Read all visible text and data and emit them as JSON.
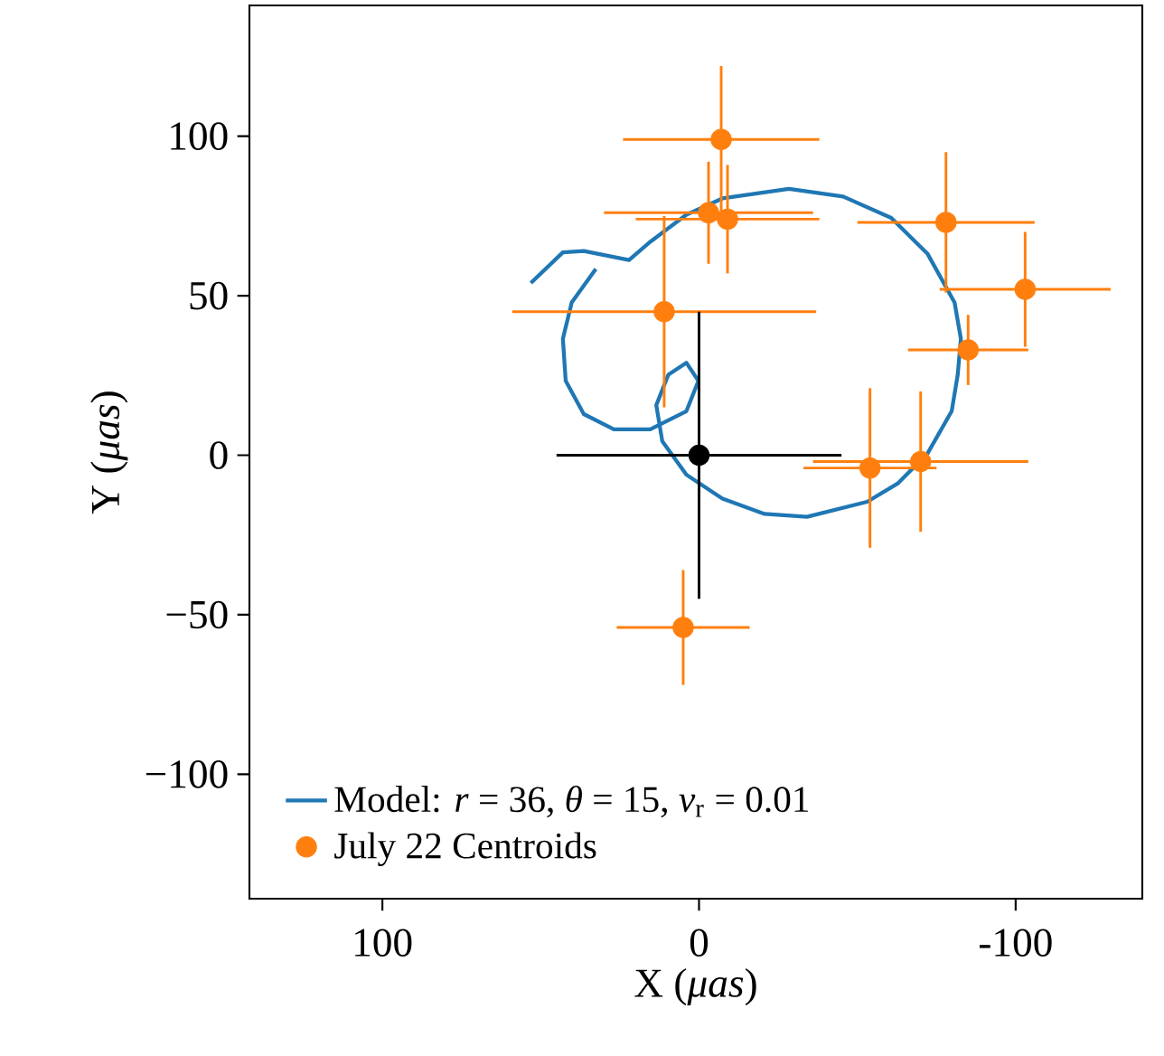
{
  "chart_data": {
    "type": "scatter",
    "xlabel": "X (*μas*)",
    "ylabel": "Y (*μas*)",
    "xlim": [
      142,
      -140
    ],
    "ylim": [
      -139,
      141
    ],
    "xticks": [
      100,
      0,
      {
        "value": -100,
        "label": "-100"
      }
    ],
    "yticks": [
      100,
      50,
      0,
      {
        "value": -50,
        "label": "−50"
      },
      {
        "value": -100,
        "label": "−100"
      }
    ],
    "legend": "bottom left",
    "grid": false,
    "series": [
      {
        "type": "line",
        "name": "Model: *r* = 36, *θ* = 15, *v*$_{r}$ = 0.01",
        "color": "#1f77b4",
        "marker": "none",
        "line_style": "solid",
        "x": [
          53.1,
          43.0,
          36.4,
          22.1,
          15.4,
          4.0,
          -7.4,
          -28.4,
          -45.5,
          -60.7,
          -72.2,
          -80.7,
          -82.7,
          -81.7,
          -79.8,
          -72.2,
          -62.7,
          -53.1,
          -34.1,
          -20.7,
          -7.4,
          4.0,
          11.6,
          13.5,
          9.7,
          4.0,
          0.2,
          4.0,
          15.4,
          26.9,
          36.4,
          42.1,
          43.0,
          40.2,
          32.6
        ],
        "values": [
          54.0,
          63.6,
          64.0,
          61.2,
          66.9,
          75.4,
          80.5,
          83.5,
          81.1,
          74.4,
          63.1,
          47.9,
          36.5,
          25.2,
          13.8,
          0.6,
          -8.9,
          -14.6,
          -19.3,
          -18.4,
          -13.6,
          -6.1,
          4.4,
          15.7,
          25.2,
          29.0,
          23.3,
          13.8,
          8.1,
          8.1,
          12.9,
          23.3,
          36.5,
          47.9,
          58.4
        ]
      },
      {
        "name": "July 22 Centroids",
        "color": "#ff7f0e",
        "marker": "circle",
        "x": [
          -7,
          -3,
          -9,
          11,
          -78,
          -103,
          -85,
          -54,
          -70,
          5
        ],
        "values": [
          99,
          76,
          74,
          45,
          73,
          52,
          33,
          -4,
          -2,
          -54
        ],
        "xerrors": [
          31,
          33,
          29,
          48,
          28,
          27,
          19,
          21,
          34,
          21
        ],
        "errors": [
          23,
          16,
          17,
          30,
          22,
          18,
          11,
          25,
          22,
          18
        ]
      },
      {
        "color": "#000000",
        "marker": "circle",
        "x": [
          0
        ],
        "values": [
          0
        ],
        "xerrors": [
          45
        ],
        "errors": [
          45
        ]
      }
    ]
  }
}
